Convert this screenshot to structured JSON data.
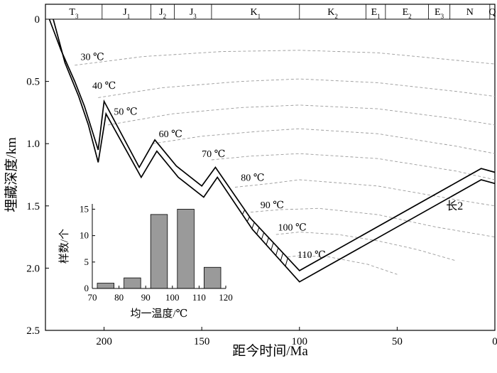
{
  "chart_data": [
    {
      "type": "line",
      "xlabel": "距今时间/Ma",
      "ylabel": "埋藏深度/km",
      "xlim": [
        230,
        0
      ],
      "ylim": [
        0,
        2.5
      ],
      "x_ticks": [
        200,
        150,
        100,
        50,
        0
      ],
      "x_tick_labels": [
        "200",
        "150",
        "100",
        "50",
        "0"
      ],
      "y_ticks": [
        0,
        0.5,
        1.0,
        1.5,
        2.0,
        2.5
      ],
      "y_tick_labels": [
        "0",
        "0.5",
        "1.0",
        "1.5",
        "2.0",
        "2.5"
      ],
      "stratigraphy": [
        {
          "label": "T",
          "sub": "3",
          "start": 230,
          "end": 201
        },
        {
          "label": "J",
          "sub": "1",
          "start": 201,
          "end": 176
        },
        {
          "label": "J",
          "sub": "2",
          "start": 176,
          "end": 164
        },
        {
          "label": "J",
          "sub": "3",
          "start": 164,
          "end": 145
        },
        {
          "label": "K",
          "sub": "1",
          "start": 145,
          "end": 100
        },
        {
          "label": "K",
          "sub": "2",
          "start": 100,
          "end": 66
        },
        {
          "label": "E",
          "sub": "1",
          "start": 66,
          "end": 56
        },
        {
          "label": "E",
          "sub": "2",
          "start": 56,
          "end": 34
        },
        {
          "label": "E",
          "sub": "3",
          "start": 34,
          "end": 23
        },
        {
          "label": "N",
          "sub": "",
          "start": 23,
          "end": 2.6
        },
        {
          "label": "Q",
          "sub": "",
          "start": 2.6,
          "end": 0
        }
      ],
      "burial_curves": [
        {
          "role": "upper",
          "x": [
            228,
            222,
            215,
            210,
            203,
            200,
            182,
            174,
            163,
            150,
            143,
            125,
            100,
            7,
            0
          ],
          "y": [
            0,
            0.25,
            0.5,
            0.7,
            1.05,
            0.66,
            1.19,
            0.97,
            1.18,
            1.34,
            1.19,
            1.6,
            2.02,
            1.2,
            1.23
          ]
        },
        {
          "role": "lower",
          "x": [
            226,
            220,
            213,
            208,
            203,
            199,
            181,
            173,
            162,
            149,
            142,
            124,
            100,
            7,
            0
          ],
          "y": [
            0,
            0.35,
            0.62,
            0.85,
            1.15,
            0.76,
            1.27,
            1.06,
            1.27,
            1.43,
            1.27,
            1.69,
            2.11,
            1.29,
            1.32
          ]
        }
      ],
      "isotherms": [
        {
          "label": "30 ℃",
          "label_x": 212,
          "label_y": 0.3,
          "x": [
            215,
            180,
            140,
            100,
            60,
            20,
            0
          ],
          "y": [
            0.37,
            0.3,
            0.26,
            0.25,
            0.27,
            0.33,
            0.36
          ]
        },
        {
          "label": "40 ℃",
          "label_x": 206,
          "label_y": 0.53,
          "x": [
            203,
            170,
            130,
            100,
            60,
            20,
            0
          ],
          "y": [
            0.63,
            0.55,
            0.5,
            0.48,
            0.51,
            0.58,
            0.62
          ]
        },
        {
          "label": "50 ℃",
          "label_x": 195,
          "label_y": 0.74,
          "x": [
            198,
            165,
            130,
            100,
            60,
            20,
            0
          ],
          "y": [
            0.85,
            0.76,
            0.71,
            0.69,
            0.72,
            0.8,
            0.85
          ]
        },
        {
          "label": "60 ℃",
          "label_x": 172,
          "label_y": 0.92,
          "x": [
            175,
            150,
            120,
            100,
            60,
            20,
            0
          ],
          "y": [
            1.0,
            0.94,
            0.9,
            0.88,
            0.92,
            1.02,
            1.08
          ]
        },
        {
          "label": "70 ℃",
          "label_x": 150,
          "label_y": 1.08,
          "x": [
            145,
            125,
            100,
            60,
            20,
            0
          ],
          "y": [
            1.13,
            1.1,
            1.08,
            1.12,
            1.22,
            1.29
          ]
        },
        {
          "label": "80 ℃",
          "label_x": 130,
          "label_y": 1.27,
          "x": [
            133,
            115,
            100,
            60,
            20,
            0
          ],
          "y": [
            1.35,
            1.32,
            1.29,
            1.34,
            1.45,
            1.5
          ]
        },
        {
          "label": "90 ℃",
          "label_x": 120,
          "label_y": 1.49,
          "x": [
            125,
            110,
            90,
            60,
            30,
            0
          ],
          "y": [
            1.55,
            1.53,
            1.52,
            1.57,
            1.67,
            1.75
          ]
        },
        {
          "label": "100 ℃",
          "label_x": 111,
          "label_y": 1.67,
          "x": [
            112,
            100,
            80,
            60,
            40,
            20
          ],
          "y": [
            1.73,
            1.71,
            1.73,
            1.78,
            1.85,
            1.94
          ]
        },
        {
          "label": "110 ℃",
          "label_x": 101,
          "label_y": 1.89,
          "x": [
            106,
            100,
            85,
            65,
            50
          ],
          "y": [
            1.91,
            1.9,
            1.91,
            1.97,
            2.05
          ]
        }
      ],
      "hatched_interval": {
        "x_start": 128,
        "x_end": 106
      },
      "well_label": "长2",
      "well_label_x": 25,
      "well_label_y": 1.5
    },
    {
      "type": "bar",
      "xlabel": "均一温度/℃",
      "ylabel": "样数/个",
      "xlim": [
        70,
        120
      ],
      "ylim": [
        0,
        16
      ],
      "x_ticks": [
        70,
        80,
        90,
        100,
        110,
        120
      ],
      "x_tick_labels": [
        "70",
        "80",
        "90",
        "100",
        "110",
        "120"
      ],
      "y_ticks": [
        0,
        5,
        10,
        15
      ],
      "y_tick_labels": [
        "0",
        "5",
        "10",
        "15"
      ],
      "bins": [
        {
          "from": 70,
          "to": 80,
          "value": 1
        },
        {
          "from": 80,
          "to": 90,
          "value": 2
        },
        {
          "from": 90,
          "to": 100,
          "value": 14
        },
        {
          "from": 100,
          "to": 110,
          "value": 15
        },
        {
          "from": 110,
          "to": 120,
          "value": 4
        }
      ],
      "bar_color": "#9a9a9a"
    }
  ]
}
